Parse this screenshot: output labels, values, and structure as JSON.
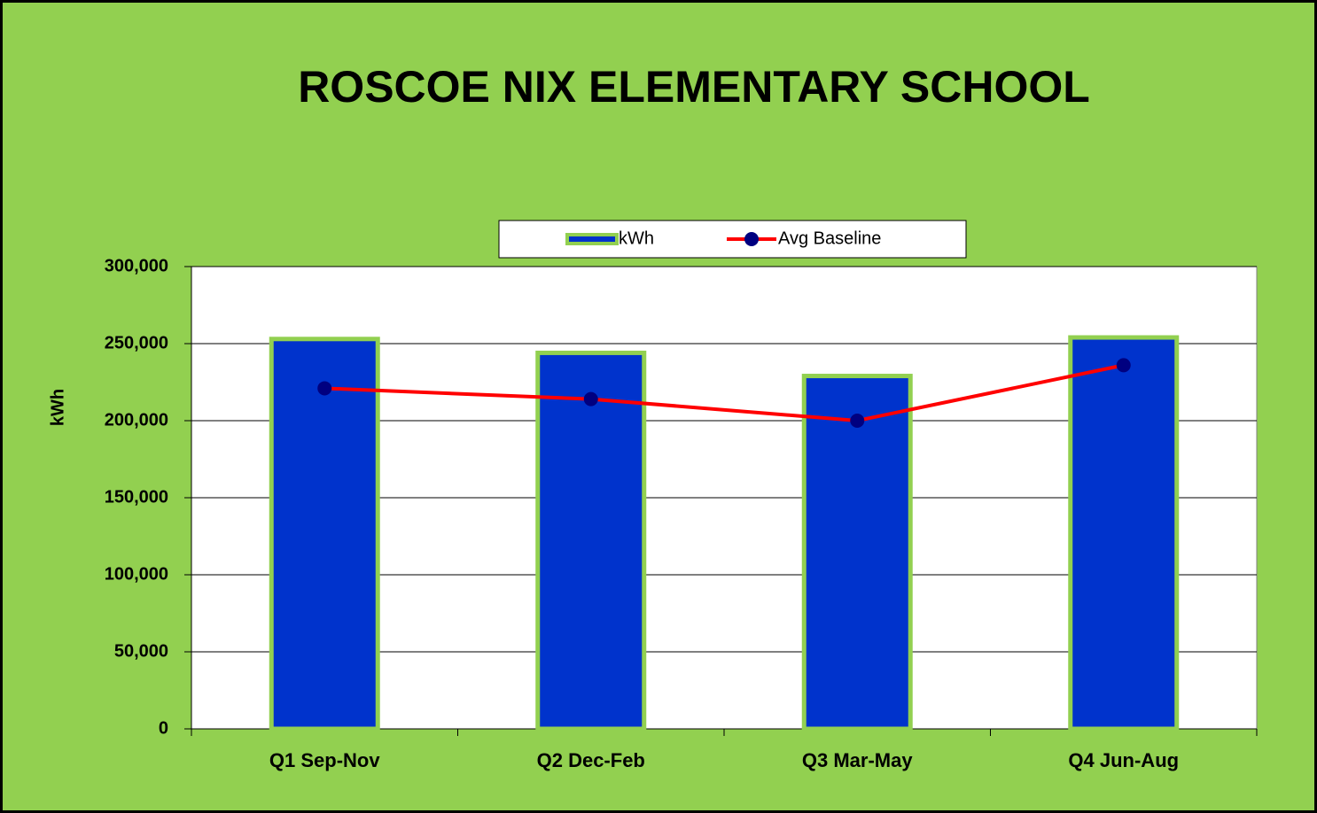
{
  "chart_data": {
    "type": "bar_line",
    "title": "ROSCOE NIX ELEMENTARY SCHOOL",
    "y_label": "kWh",
    "categories": [
      "Q1 Sep-Nov",
      "Q2 Dec-Feb",
      "Q3 Mar-May",
      "Q4 Jun-Aug"
    ],
    "series": [
      {
        "name": "kWh",
        "type": "bar",
        "color": "#0033cc",
        "values": [
          253000,
          244000,
          229000,
          254000
        ]
      },
      {
        "name": "Avg Baseline",
        "type": "line",
        "color": "#ff0000",
        "values": [
          221000,
          214000,
          200000,
          236000
        ]
      }
    ],
    "ylim": [
      0,
      300000
    ],
    "yticks": [
      0,
      {
        "value": 50000,
        "label": "50,000"
      },
      {
        "value": 100000,
        "label": "100,000"
      },
      {
        "value": 150000,
        "label": "150,000"
      },
      {
        "value": 200000,
        "label": "200,000"
      },
      {
        "value": 250000,
        "label": "250,000"
      },
      {
        "value": 300000,
        "label": "300,000"
      }
    ],
    "grid": true,
    "legend": "top"
  }
}
